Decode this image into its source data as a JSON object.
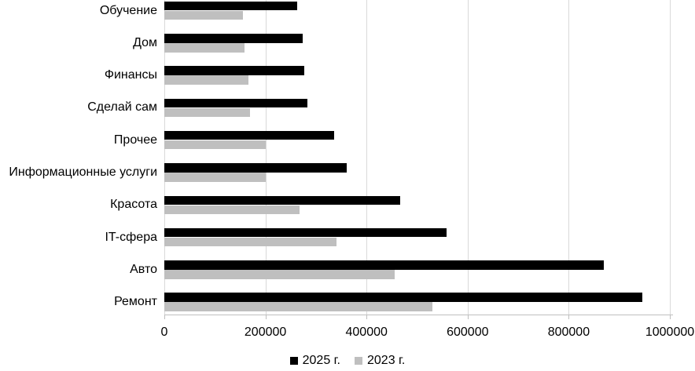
{
  "chart_data": {
    "type": "bar",
    "orientation": "horizontal",
    "title": "",
    "categories": [
      "Обучение",
      "Дом",
      "Финансы",
      "Сделай сам",
      "Прочее",
      "Информационные услуги",
      "Красота",
      "IT-сфера",
      "Авто",
      "Ремонт"
    ],
    "series": [
      {
        "name": "2025 г.",
        "color": "#000000",
        "values": [
          262000,
          273000,
          276000,
          283000,
          336000,
          360000,
          467000,
          558000,
          869000,
          946000
        ]
      },
      {
        "name": "2023 г.",
        "color": "#BFBFBF",
        "values": [
          156000,
          158000,
          167000,
          170000,
          200000,
          200000,
          268000,
          341000,
          455000,
          530000
        ]
      }
    ],
    "xlim": [
      0,
      1000000
    ],
    "x_ticks": [
      0,
      200000,
      400000,
      600000,
      800000,
      1000000
    ],
    "x_tick_labels": [
      "0",
      "200000",
      "400000",
      "600000",
      "800000",
      "1000000"
    ],
    "grid": "vertical-major",
    "legend_position": "bottom-center",
    "colors": {
      "gridline": "#D9D9D9",
      "axis_line": "#BFBFBF",
      "text": "#000000",
      "background": "#FFFFFF"
    }
  }
}
